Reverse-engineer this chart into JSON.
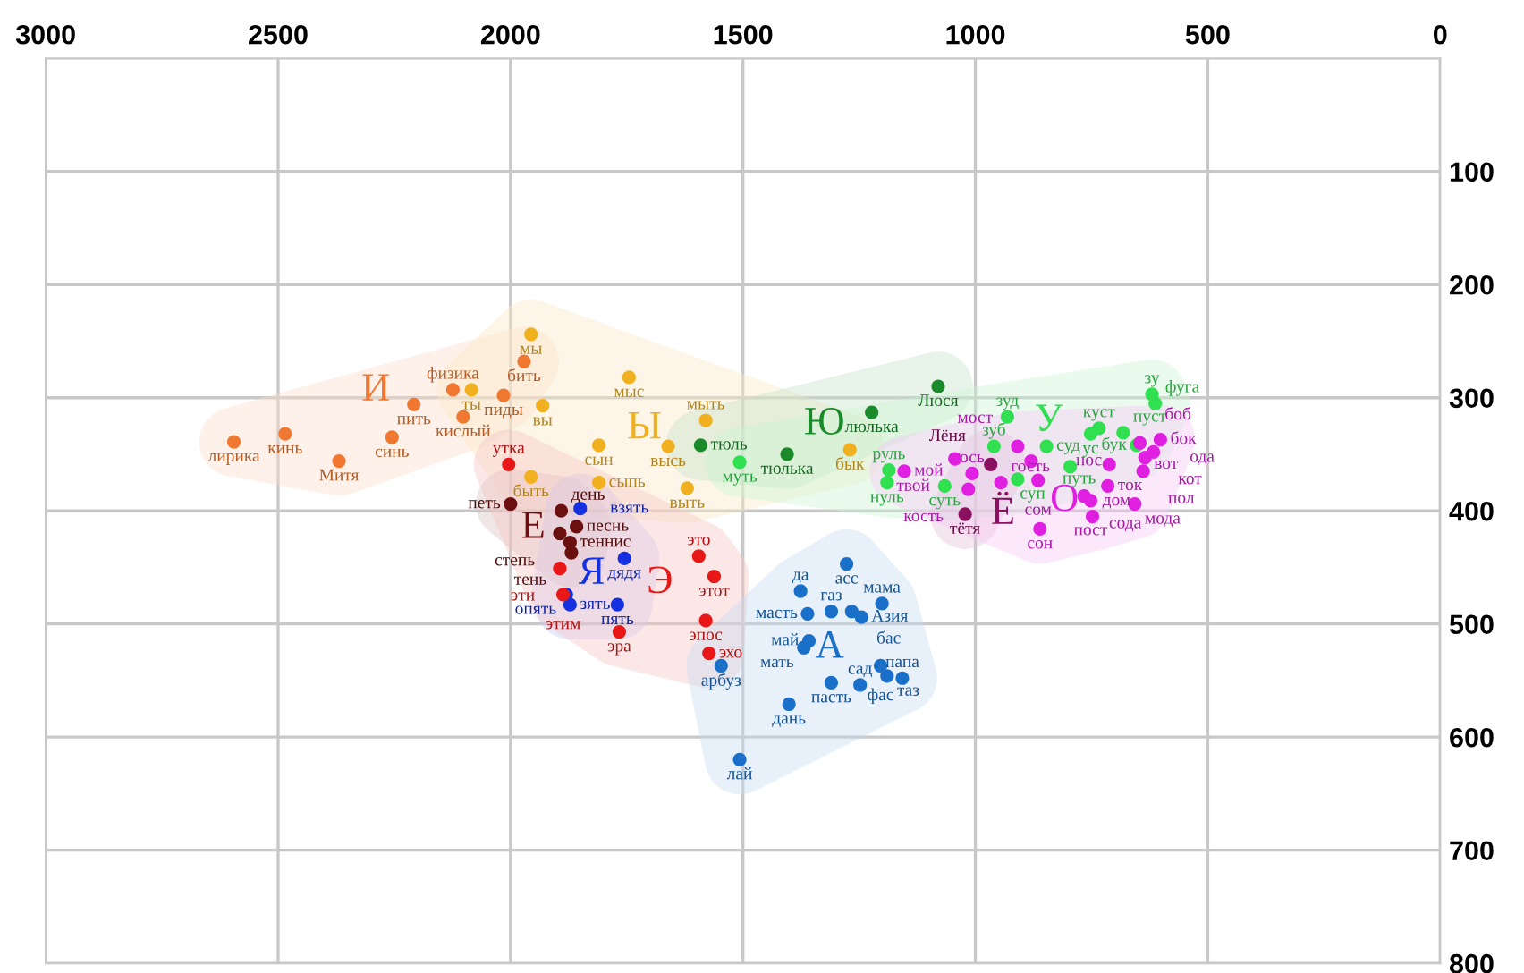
{
  "chart_data": {
    "type": "scatter",
    "xlim": [
      3000,
      0
    ],
    "ylim": [
      800,
      0
    ],
    "xticks": [
      3000,
      2500,
      2000,
      1500,
      1000,
      500,
      0
    ],
    "yticks": [
      100,
      200,
      300,
      400,
      500,
      600,
      700,
      800
    ],
    "grid": true,
    "marker": "circle",
    "series": [
      {
        "name": "И",
        "color": "#f07830",
        "x": [
          2595,
          2485,
          2369,
          2208,
          2255,
          2124,
          2102,
          2015,
          1971
        ],
        "values": [
          339,
          332,
          356,
          306,
          335,
          293,
          317,
          298,
          268
        ]
      },
      {
        "name": "Ы",
        "color": "#f0b020",
        "x": [
          1956,
          2084,
          1931,
          1745,
          1810,
          1580,
          1661,
          1810,
          1620,
          1956,
          1270
        ],
        "values": [
          244,
          293,
          307,
          282,
          342,
          320,
          343,
          375,
          380,
          370,
          346
        ]
      },
      {
        "name": "Ю",
        "color": "#1a8a2a",
        "x": [
          1591,
          1080,
          1223,
          1405
        ],
        "values": [
          342,
          290,
          313,
          350
        ]
      },
      {
        "name": "У",
        "color": "#30e050",
        "x": [
          1507,
          1186,
          1190,
          1066,
          960,
          931,
          847,
          796,
          909,
          752,
          734,
          682,
          653,
          620,
          613
        ],
        "values": [
          357,
          364,
          375,
          378,
          343,
          317,
          343,
          361,
          372,
          332,
          327,
          331,
          342,
          297,
          305
        ]
      },
      {
        "name": "Ё",
        "color": "#8b1060",
        "x": [
          1022,
          967
        ],
        "values": [
          403,
          359
        ]
      },
      {
        "name": "О",
        "color": "#e020e0",
        "x": [
          1153,
          1044,
          1007,
          1015,
          945,
          865,
          909,
          880,
          766,
          752,
          748,
          861,
          715,
          712,
          602,
          617,
          646,
          635,
          639,
          657
        ],
        "values": [
          365,
          354,
          367,
          381,
          375,
          373,
          343,
          356,
          387,
          391,
          405,
          416,
          378,
          359,
          337,
          348,
          340,
          353,
          365,
          394
        ]
      },
      {
        "name": "Е",
        "color": "#6b1010",
        "x": [
          2000,
          1891,
          1858,
          1894,
          1872,
          1869
        ],
        "values": [
          394,
          400,
          414,
          420,
          428,
          437
        ]
      },
      {
        "name": "Я",
        "color": "#1530e0",
        "x": [
          1850,
          1755,
          1880,
          1770,
          1872
        ],
        "values": [
          398,
          442,
          474,
          483,
          483
        ]
      },
      {
        "name": "Э",
        "color": "#e81818",
        "x": [
          2004,
          1894,
          1887,
          1595,
          1562,
          1580,
          1573,
          1766
        ],
        "values": [
          359,
          451,
          474,
          440,
          458,
          497,
          526,
          507
        ]
      },
      {
        "name": "А",
        "color": "#1a6fc8",
        "x": [
          1277,
          1376,
          1361,
          1310,
          1266,
          1245,
          1201,
          1358,
          1369,
          1204,
          1190,
          1157,
          1310,
          1248,
          1401,
          1507,
          1547
        ],
        "values": [
          447,
          471,
          491,
          489,
          489,
          494,
          482,
          515,
          521,
          537,
          546,
          548,
          552,
          554,
          571,
          620,
          537
        ]
      }
    ],
    "annotations": [
      {
        "text": "лирика",
        "x": 2595,
        "y": 339
      },
      {
        "text": "кинь",
        "x": 2485,
        "y": 332
      },
      {
        "text": "Митя",
        "x": 2369,
        "y": 356
      },
      {
        "text": "пить",
        "x": 2208,
        "y": 306
      },
      {
        "text": "синь",
        "x": 2255,
        "y": 335
      },
      {
        "text": "физика",
        "x": 2124,
        "y": 293
      },
      {
        "text": "кислый",
        "x": 2102,
        "y": 317
      },
      {
        "text": "пиды",
        "x": 2015,
        "y": 298
      },
      {
        "text": "бить",
        "x": 1971,
        "y": 268
      },
      {
        "text": "мы",
        "x": 1956,
        "y": 244
      },
      {
        "text": "ты",
        "x": 2084,
        "y": 293
      },
      {
        "text": "вы",
        "x": 1931,
        "y": 307
      },
      {
        "text": "мыс",
        "x": 1745,
        "y": 282
      },
      {
        "text": "сын",
        "x": 1810,
        "y": 342
      },
      {
        "text": "мыть",
        "x": 1580,
        "y": 320
      },
      {
        "text": "высь",
        "x": 1661,
        "y": 343
      },
      {
        "text": "сыпь",
        "x": 1810,
        "y": 375
      },
      {
        "text": "выть",
        "x": 1620,
        "y": 380
      },
      {
        "text": "быть",
        "x": 1956,
        "y": 370
      },
      {
        "text": "бык",
        "x": 1270,
        "y": 346
      },
      {
        "text": "тюль",
        "x": 1591,
        "y": 342
      },
      {
        "text": "Люся",
        "x": 1080,
        "y": 290
      },
      {
        "text": "люлька",
        "x": 1223,
        "y": 313
      },
      {
        "text": "тюлька",
        "x": 1405,
        "y": 350
      },
      {
        "text": "муть",
        "x": 1507,
        "y": 357
      },
      {
        "text": "руль",
        "x": 1186,
        "y": 364
      },
      {
        "text": "нуль",
        "x": 1190,
        "y": 375
      },
      {
        "text": "суть",
        "x": 1066,
        "y": 378
      },
      {
        "text": "зуб",
        "x": 960,
        "y": 343
      },
      {
        "text": "зуд",
        "x": 931,
        "y": 317
      },
      {
        "text": "суд",
        "x": 847,
        "y": 343
      },
      {
        "text": "суп",
        "x": 796,
        "y": 361
      },
      {
        "text": "путь",
        "x": 909,
        "y": 372
      },
      {
        "text": "ус",
        "x": 752,
        "y": 332
      },
      {
        "text": "куст",
        "x": 734,
        "y": 327
      },
      {
        "text": "пуст",
        "x": 682,
        "y": 331
      },
      {
        "text": "бук",
        "x": 653,
        "y": 342
      },
      {
        "text": "зу",
        "x": 620,
        "y": 297
      },
      {
        "text": "фуга",
        "x": 613,
        "y": 305
      },
      {
        "text": "тётя",
        "x": 1022,
        "y": 403
      },
      {
        "text": "Лёня",
        "x": 967,
        "y": 359
      },
      {
        "text": "мой",
        "x": 1153,
        "y": 365
      },
      {
        "text": "твой",
        "x": 1044,
        "y": 354
      },
      {
        "text": "ось",
        "x": 1007,
        "y": 367
      },
      {
        "text": "кость",
        "x": 1015,
        "y": 381
      },
      {
        "text": "гость",
        "x": 945,
        "y": 375
      },
      {
        "text": "сом",
        "x": 865,
        "y": 373
      },
      {
        "text": "мост",
        "x": 909,
        "y": 343
      },
      {
        "text": "нос",
        "x": 880,
        "y": 356
      },
      {
        "text": "сода",
        "x": 766,
        "y": 387
      },
      {
        "text": "пост",
        "x": 752,
        "y": 391
      },
      {
        "text": "дом",
        "x": 748,
        "y": 405
      },
      {
        "text": "сон",
        "x": 861,
        "y": 416
      },
      {
        "text": "ток",
        "x": 715,
        "y": 378
      },
      {
        "text": "вот",
        "x": 712,
        "y": 359
      },
      {
        "text": "бок",
        "x": 602,
        "y": 337
      },
      {
        "text": "кот",
        "x": 617,
        "y": 348
      },
      {
        "text": "боб",
        "x": 646,
        "y": 340
      },
      {
        "text": "ода",
        "x": 635,
        "y": 353
      },
      {
        "text": "пол",
        "x": 639,
        "y": 365
      },
      {
        "text": "мода",
        "x": 657,
        "y": 394
      },
      {
        "text": "петь",
        "x": 2000,
        "y": 394
      },
      {
        "text": "день",
        "x": 1891,
        "y": 400
      },
      {
        "text": "песнь",
        "x": 1858,
        "y": 414
      },
      {
        "text": "степь",
        "x": 1894,
        "y": 420
      },
      {
        "text": "теннис",
        "x": 1872,
        "y": 428
      },
      {
        "text": "тень",
        "x": 1869,
        "y": 437
      },
      {
        "text": "взять",
        "x": 1850,
        "y": 398
      },
      {
        "text": "дядя",
        "x": 1755,
        "y": 442
      },
      {
        "text": "опять",
        "x": 1880,
        "y": 474
      },
      {
        "text": "пять",
        "x": 1770,
        "y": 483
      },
      {
        "text": "зять",
        "x": 1872,
        "y": 483
      },
      {
        "text": "утка",
        "x": 2004,
        "y": 359
      },
      {
        "text": "эти",
        "x": 1894,
        "y": 451
      },
      {
        "text": "этим",
        "x": 1887,
        "y": 474
      },
      {
        "text": "это",
        "x": 1595,
        "y": 440
      },
      {
        "text": "этот",
        "x": 1562,
        "y": 458
      },
      {
        "text": "эпос",
        "x": 1580,
        "y": 497
      },
      {
        "text": "эхо",
        "x": 1573,
        "y": 526
      },
      {
        "text": "эра",
        "x": 1766,
        "y": 507
      },
      {
        "text": "асс",
        "x": 1277,
        "y": 447
      },
      {
        "text": "да",
        "x": 1376,
        "y": 471
      },
      {
        "text": "масть",
        "x": 1361,
        "y": 491
      },
      {
        "text": "газ",
        "x": 1310,
        "y": 489
      },
      {
        "text": "бас",
        "x": 1266,
        "y": 489
      },
      {
        "text": "Азия",
        "x": 1245,
        "y": 494
      },
      {
        "text": "мама",
        "x": 1201,
        "y": 482
      },
      {
        "text": "май",
        "x": 1358,
        "y": 515
      },
      {
        "text": "мать",
        "x": 1369,
        "y": 521
      },
      {
        "text": "фас",
        "x": 1204,
        "y": 537
      },
      {
        "text": "таз",
        "x": 1190,
        "y": 546
      },
      {
        "text": "папа",
        "x": 1157,
        "y": 548
      },
      {
        "text": "пасть",
        "x": 1310,
        "y": 552
      },
      {
        "text": "сад",
        "x": 1248,
        "y": 554
      },
      {
        "text": "дань",
        "x": 1401,
        "y": 571
      },
      {
        "text": "лай",
        "x": 1507,
        "y": 620
      },
      {
        "text": "арбуз",
        "x": 1547,
        "y": 537
      }
    ]
  }
}
